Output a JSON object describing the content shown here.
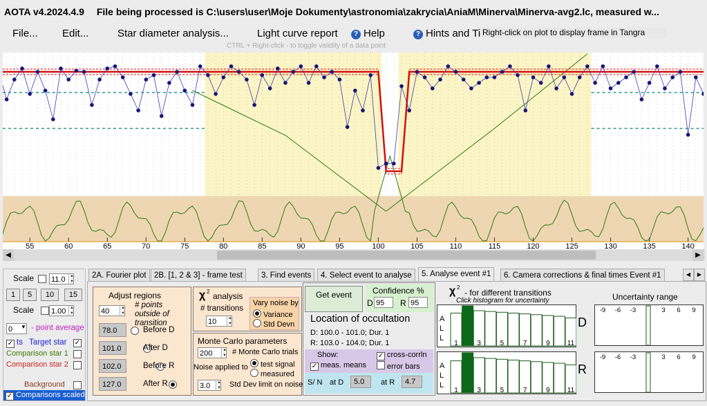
{
  "window": {
    "app_title": "AOTA v4.2024.4.9",
    "file_title": "File being processed is C:\\users\\user\\Moje Dokumenty\\astronomia\\zakrycia\\AniaM\\Minerva\\Minerva-avg2.lc, measured w..."
  },
  "menu": {
    "file": "File...",
    "edit": "Edit...",
    "star_diameter": "Star diameter analysis...",
    "light_curve_report": "Light curve report",
    "help": "Help",
    "hints": "Hints and Ti"
  },
  "tooltip": "Right-click on plot to display frame in Tangra",
  "plot_hint": "CTRL + Right-click  -  to toggle validity of a data point",
  "chart_data": {
    "type": "line",
    "x_ticks": [
      "55",
      "60",
      "65",
      "70",
      "75",
      "80",
      "85",
      "90",
      "95",
      "100",
      "105",
      "110",
      "115",
      "120",
      "125",
      "130",
      "135",
      "140"
    ],
    "xlim": [
      51.5,
      142
    ],
    "grid": true,
    "series": [
      {
        "color": "#1a1a7a",
        "x": [
          51,
          52,
          53,
          54,
          55,
          56,
          57,
          58,
          59,
          60,
          61,
          62,
          63,
          64,
          65,
          66,
          67,
          68,
          69,
          70,
          71,
          72,
          73,
          74,
          75,
          76,
          77,
          78,
          79,
          80,
          81,
          82,
          83,
          84,
          85,
          86,
          87,
          88,
          89,
          90,
          91,
          92,
          93,
          94,
          95,
          96,
          97,
          98,
          99,
          100,
          101,
          102,
          103,
          104,
          105,
          106,
          107,
          108,
          109,
          110,
          111,
          112,
          113,
          114,
          115,
          116,
          117,
          118,
          119,
          120,
          121,
          122,
          123,
          124,
          125,
          126,
          127,
          128,
          129,
          130,
          131,
          132,
          133,
          134,
          135,
          136,
          137,
          138,
          139,
          140,
          141,
          142
        ],
        "y": [
          0.05,
          0.3,
          0.12,
          0.02,
          0.25,
          0.05,
          0.22,
          0.48,
          0.02,
          0.12,
          0.04,
          0.05,
          0.35,
          0.12,
          0.02,
          0.0,
          0.1,
          0.25,
          0.4,
          0.12,
          0.08,
          0.45,
          0.15,
          0.05,
          0.22,
          0.35,
          0.0,
          0.08,
          0.25,
          0.1,
          0.0,
          0.05,
          0.12,
          0.35,
          0.08,
          0.2,
          0.02,
          0.15,
          0.05,
          0.0,
          0.15,
          0.0,
          0.1,
          0.05,
          0.12,
          0.55,
          0.22,
          0.4,
          0.08,
          0.1,
          0.2,
          0.3,
          0.18,
          0.4,
          0.05,
          0.1,
          0.2,
          0.12,
          0.0,
          0.05,
          0.12,
          0.2,
          0.15,
          0.1,
          0.1,
          0.05,
          0.0,
          0.08,
          0.4,
          0.1,
          0.15,
          0.0,
          0.2,
          0.1,
          0.25,
          0.1,
          0.0,
          0.15,
          0.0,
          0.2,
          0.15,
          0.1,
          0.05,
          0.3,
          0.15,
          0.0,
          0.2,
          0.1,
          0.05,
          0.62,
          0.1,
          0.25
        ]
      }
    ],
    "model_levels": {
      "outside": 0.05,
      "event": 0.95
    },
    "event_times": {
      "D_start": 100.0,
      "D_end": 101.0,
      "R_start": 103.0,
      "R_end": 104.0
    }
  },
  "bottom_left": {
    "scale_label": "Scale",
    "scale_value": "11.0",
    "scale_buttons": [
      "1",
      "5",
      "10",
      "15"
    ],
    "scale2_label": "Scale",
    "scale2_value": "1.00",
    "point_average_value": "0",
    "point_average_label": "- point average",
    "ts_label": "ts",
    "target_star": "Target star",
    "comparison1": "Comparison star 1",
    "comparison2": "Comparison star 2",
    "background": "Background",
    "comparisons_scaled": "Comparisons scaled",
    "colors": {
      "target": "#1a1ae0",
      "comp1": "#3a7a00",
      "comp2": "#d02020",
      "background": "#8a3a1a",
      "scaled": "#0a2a9a"
    }
  },
  "tabs": [
    "2A. Fourier plot",
    "2B. [1, 2 & 3] - frame test",
    "3. Find events",
    "4. Select event to analyse",
    "5. Analyse event #1",
    "6. Camera corrections & final times Event #1"
  ],
  "adjust": {
    "title": "Adjust regions",
    "points_value": "40",
    "points_label": "# points outside of transition",
    "before_d_value": "78.0",
    "before_d": "Before D",
    "after_d_value": "101.0",
    "after_d": "After D",
    "before_r_value": "102.0",
    "before_r": "Before R",
    "after_r_value": "127.0",
    "after_r": "After R"
  },
  "chi": {
    "title": "analysis",
    "symbol": "χ",
    "sup": "2",
    "transitions_label": "# transitions",
    "transitions_value": "10",
    "vary_label": "Vary noise by",
    "variance": "Variance",
    "std_devn": "Std Devn"
  },
  "monte": {
    "title": "Monte Carlo parameters",
    "trials_value": "200",
    "trials_label": "# Monte Carlo trials",
    "noise_label": "Noise applied to",
    "test_signal": "test signal",
    "measured": "measured",
    "std_value": "3.0",
    "std_label": "Std Dev limit on noise"
  },
  "location": {
    "get_event": "Get event",
    "confidence": "Confidence %",
    "d_label": "D",
    "d_value": "95",
    "r_label": "R",
    "r_value": "95",
    "title": "Location of occultation",
    "d_line": "D: 100.0 - 101.0; Dur. 1",
    "r_line": "R: 103.0 - 104.0; Dur. 1",
    "show": "Show:",
    "cross_corr": "cross-corrln",
    "meas_means": "meas. means",
    "error_bars": "error bars",
    "sn": "S/ N",
    "at_d": "at D",
    "sn_d": "5.0",
    "at_r": "at R",
    "sn_r": "4.7"
  },
  "chi2_hist": {
    "title": "- for different transitions",
    "symbol": "χ",
    "sup": "2",
    "subtitle": "Click histogram for uncertainty",
    "all_letters": [
      "A",
      "L",
      "L"
    ],
    "labels": [
      "1",
      "3",
      "5",
      "7",
      "9",
      "11"
    ],
    "D_label": "D",
    "R_label": "R",
    "D_bars": [
      0.82,
      1.0,
      0.88,
      0.86,
      0.84,
      0.82,
      0.8,
      0.78,
      0.76,
      0.74,
      0.7
    ],
    "R_bars": [
      0.8,
      1.0,
      0.88,
      0.86,
      0.84,
      0.82,
      0.8,
      0.78,
      0.76,
      0.74,
      0.7
    ],
    "highlight_index": 1
  },
  "uncertainty": {
    "title": "Uncertainty range",
    "ticks": [
      "-9",
      "-6",
      "-3",
      "0",
      "3",
      "6",
      "9"
    ]
  }
}
